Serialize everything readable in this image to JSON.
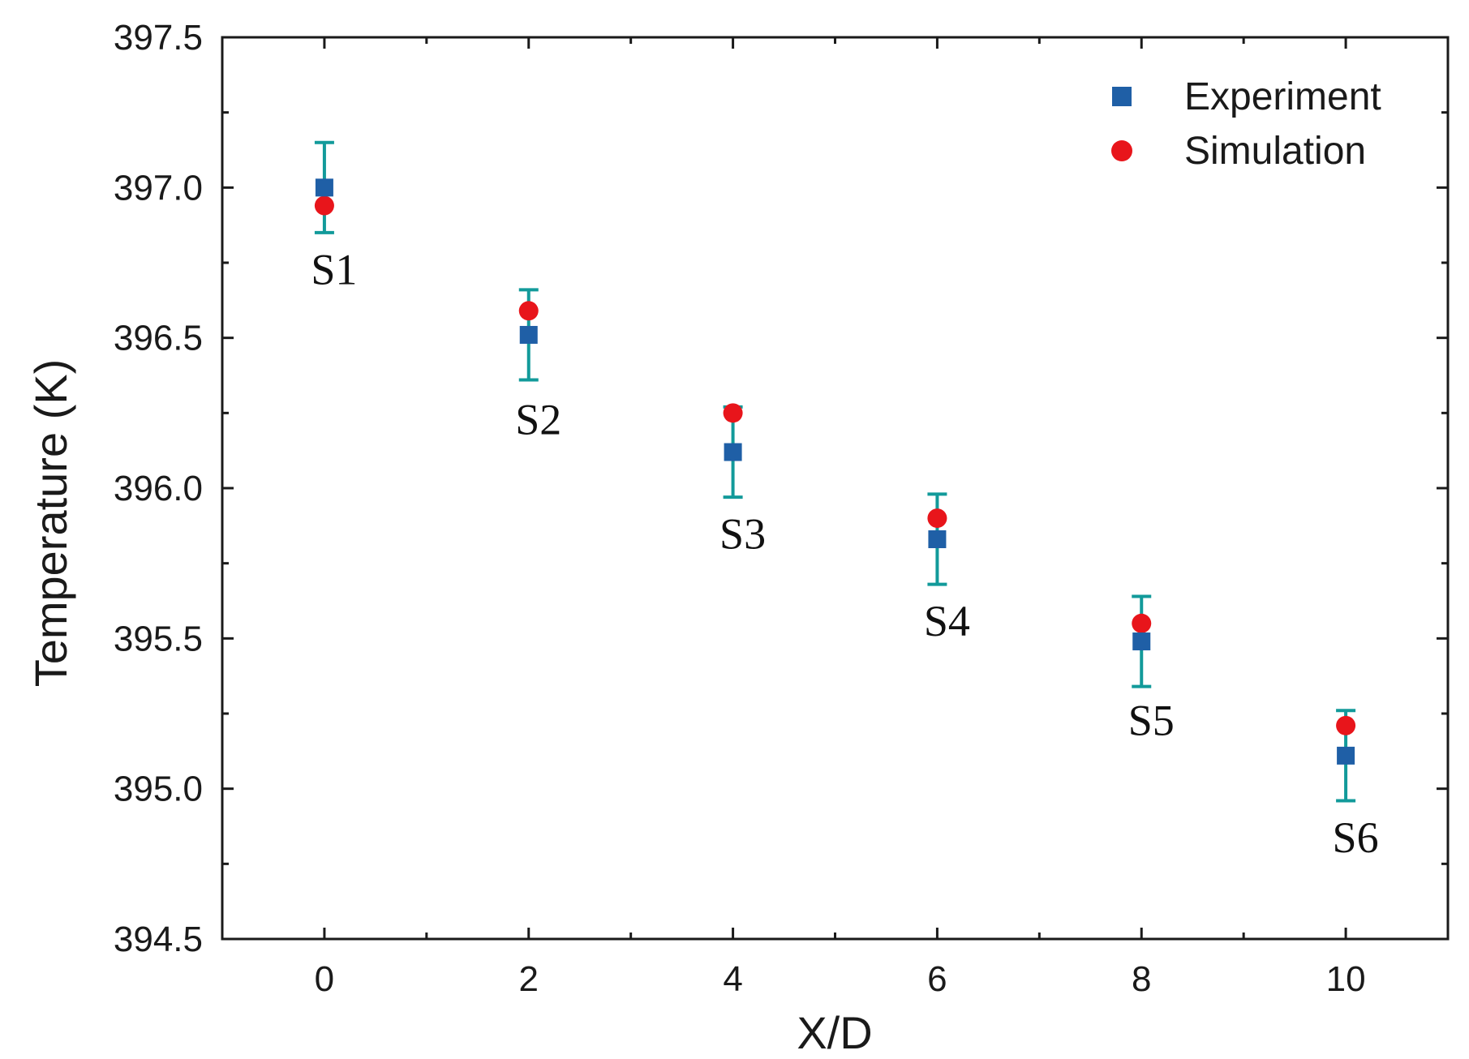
{
  "chart_data": {
    "type": "scatter",
    "title": "",
    "xlabel": "X/D",
    "ylabel": "Temperature (K)",
    "xlim": [
      -1,
      11
    ],
    "ylim": [
      394.5,
      397.5
    ],
    "x_ticks": [
      0,
      2,
      4,
      6,
      8,
      10
    ],
    "x_minor_ticks": [
      1,
      3,
      5,
      7,
      9
    ],
    "y_ticks": [
      394.5,
      395.0,
      395.5,
      396.0,
      396.5,
      397.0,
      397.5
    ],
    "y_tick_labels": [
      "394.5",
      "395.0",
      "395.5",
      "396.0",
      "396.5",
      "397.0",
      "397.5"
    ],
    "legend_position": "top-right",
    "series": [
      {
        "name": "Experiment",
        "marker": "square",
        "color": "#1f5fa6",
        "x": [
          0,
          2,
          4,
          6,
          8,
          10
        ],
        "values": [
          397.0,
          396.51,
          396.12,
          395.83,
          395.49,
          395.11
        ],
        "error_upper": [
          397.15,
          396.66,
          396.27,
          395.98,
          395.64,
          395.26
        ],
        "error_lower": [
          396.85,
          396.36,
          395.97,
          395.68,
          395.34,
          394.96
        ],
        "error_color": "#129a9a"
      },
      {
        "name": "Simulation",
        "marker": "circle",
        "color": "#e8151b",
        "x": [
          0,
          2,
          4,
          6,
          8,
          10
        ],
        "values": [
          396.94,
          396.59,
          396.25,
          395.9,
          395.55,
          395.21
        ]
      }
    ],
    "annotations": [
      {
        "text": "S1",
        "x": 0,
        "y": 396.73
      },
      {
        "text": "S2",
        "x": 2,
        "y": 396.23
      },
      {
        "text": "S3",
        "x": 4,
        "y": 395.85
      },
      {
        "text": "S4",
        "x": 6,
        "y": 395.56
      },
      {
        "text": "S5",
        "x": 8,
        "y": 395.23
      },
      {
        "text": "S6",
        "x": 10,
        "y": 394.84
      }
    ]
  }
}
